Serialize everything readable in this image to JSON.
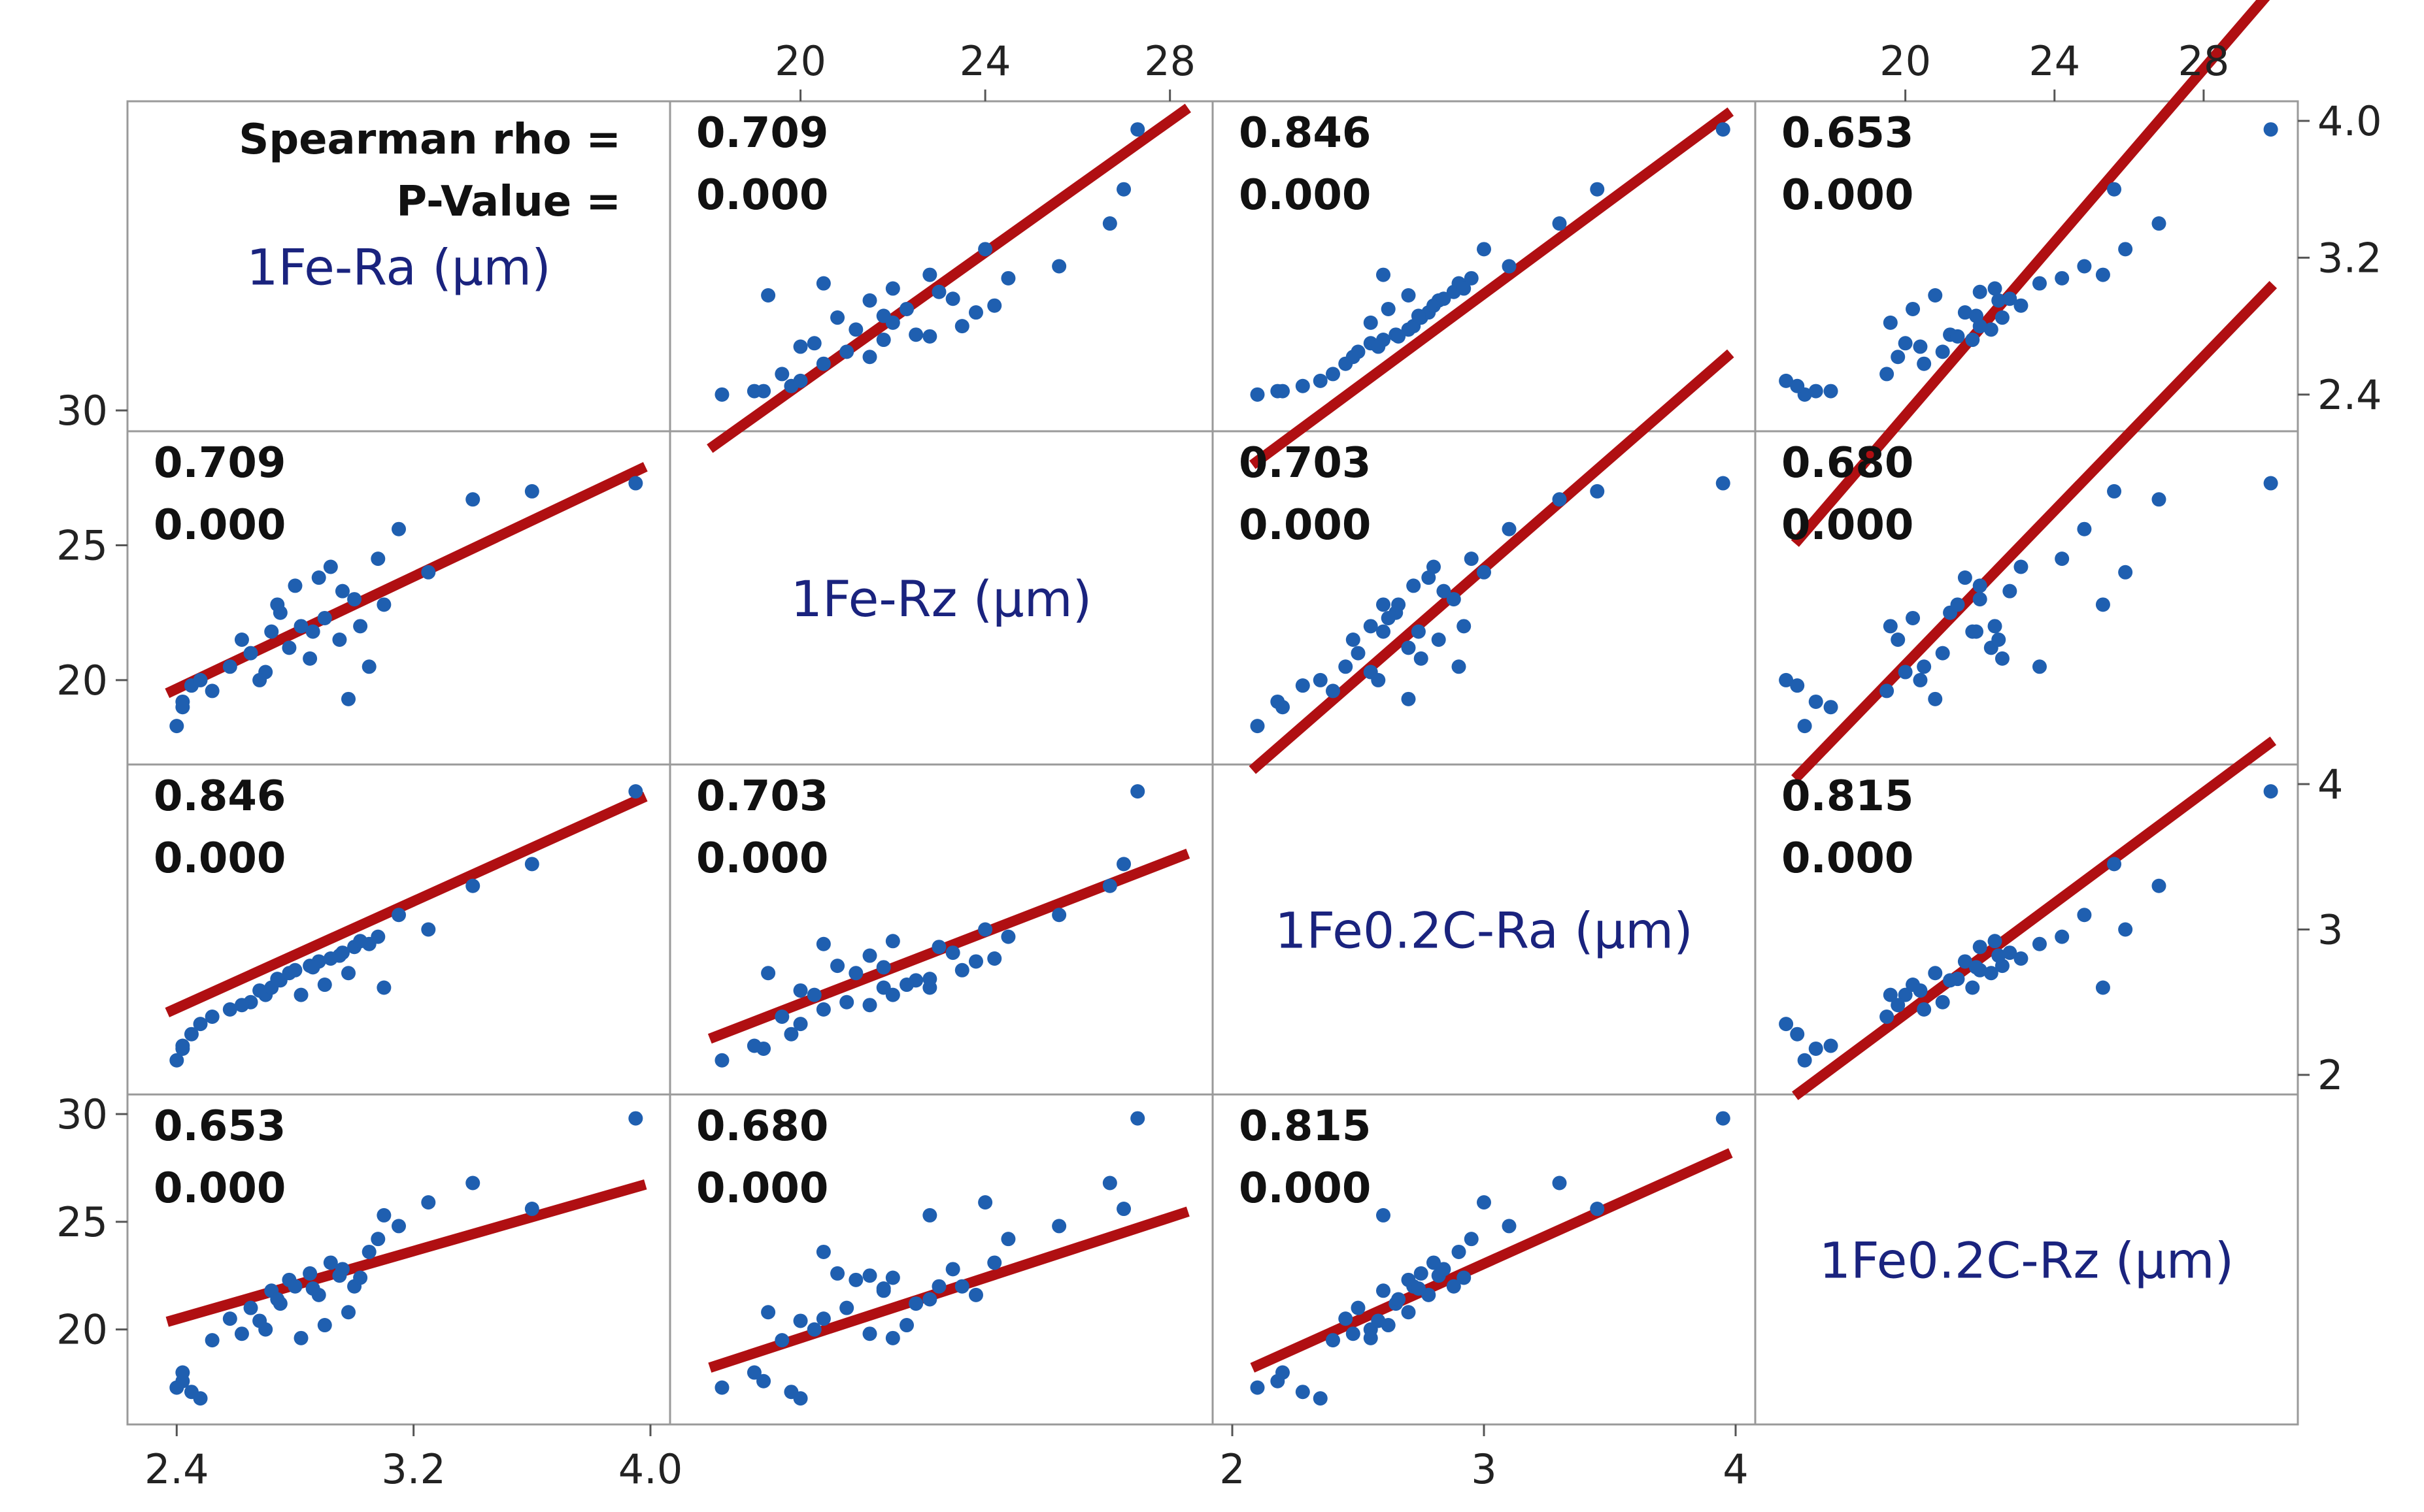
{
  "chart_data": {
    "type": "scatter-matrix",
    "statistic_label": "Spearman rho =",
    "pvalue_label": "P-Value =",
    "variables": [
      {
        "name": "1Fe-Ra (µm)",
        "range": [
          2.3,
          4.0
        ]
      },
      {
        "name": "1Fe-Rz (µm)",
        "range": [
          17.6,
          28.5
        ]
      },
      {
        "name": "1Fe0.2C-Ra (µm)",
        "range": [
          2.0,
          4.0
        ]
      },
      {
        "name": "1Fe0.2C-Rz (µm)",
        "range": [
          16.5,
          30.0
        ]
      }
    ],
    "axes": {
      "top": {
        "ticks": [
          "20",
          "24",
          "28"
        ]
      },
      "bottom_col0": {
        "ticks": [
          "2.4",
          "3.2",
          "4.0"
        ]
      },
      "bottom_col2": {
        "ticks": [
          "2",
          "3",
          "4"
        ]
      },
      "left_row1": {
        "ticks": [
          "30",
          "25",
          "20"
        ]
      },
      "left_row3": {
        "ticks": [
          "30",
          "25",
          "20"
        ]
      },
      "right_row0": {
        "ticks": [
          "4.0",
          "3.2",
          "2.4"
        ]
      },
      "right_row2": {
        "ticks": [
          "4",
          "3",
          "2"
        ]
      }
    },
    "stats": [
      {
        "pair": [
          "1Fe-Ra (µm)",
          "1Fe-Rz (µm)"
        ],
        "rho": "0.709",
        "p": "0.000"
      },
      {
        "pair": [
          "1Fe-Ra (µm)",
          "1Fe0.2C-Ra (µm)"
        ],
        "rho": "0.846",
        "p": "0.000"
      },
      {
        "pair": [
          "1Fe-Ra (µm)",
          "1Fe0.2C-Rz (µm)"
        ],
        "rho": "0.653",
        "p": "0.000"
      },
      {
        "pair": [
          "1Fe-Rz (µm)",
          "1Fe0.2C-Ra (µm)"
        ],
        "rho": "0.703",
        "p": "0.000"
      },
      {
        "pair": [
          "1Fe-Rz (µm)",
          "1Fe0.2C-Rz (µm)"
        ],
        "rho": "0.680",
        "p": "0.000"
      },
      {
        "pair": [
          "1Fe0.2C-Ra (µm)",
          "1Fe0.2C-Rz (µm)"
        ],
        "rho": "0.815",
        "p": "0.000"
      }
    ],
    "fit_lines": [
      {
        "x": "1Fe-Ra (µm)",
        "y": "1Fe-Rz (µm)",
        "intercept": 7.2,
        "slope": 5.2
      },
      {
        "x": "1Fe-Ra (µm)",
        "y": "1Fe0.2C-Ra (µm)",
        "intercept": 0.25,
        "slope": 0.92
      },
      {
        "x": "1Fe-Ra (µm)",
        "y": "1Fe0.2C-Rz (µm)",
        "intercept": 11.0,
        "slope": 3.95
      },
      {
        "x": "1Fe-Rz (µm)",
        "y": "1Fe0.2C-Ra (µm)",
        "intercept": 0.03,
        "slope": 0.123
      },
      {
        "x": "1Fe-Rz (µm)",
        "y": "1Fe0.2C-Rz (µm)",
        "intercept": 5.6,
        "slope": 0.7
      },
      {
        "x": "1Fe0.2C-Ra (µm)",
        "y": "1Fe0.2C-Rz (µm)",
        "intercept": 7.3,
        "slope": 5.25
      }
    ],
    "observations": [
      {
        "Ra1": 2.4,
        "Rz1": 18.3,
        "Ra2": 2.1,
        "Rz2": 17.3
      },
      {
        "Ra1": 2.42,
        "Rz1": 19.2,
        "Ra2": 2.18,
        "Rz2": 17.6
      },
      {
        "Ra1": 2.45,
        "Rz1": 19.8,
        "Ra2": 2.28,
        "Rz2": 17.1
      },
      {
        "Ra1": 2.48,
        "Rz1": 20.0,
        "Ra2": 2.35,
        "Rz2": 16.8
      },
      {
        "Ra1": 2.52,
        "Rz1": 19.6,
        "Ra2": 2.4,
        "Rz2": 19.5
      },
      {
        "Ra1": 2.58,
        "Rz1": 20.5,
        "Ra2": 2.45,
        "Rz2": 20.5
      },
      {
        "Ra1": 2.65,
        "Rz1": 21.0,
        "Ra2": 2.5,
        "Rz2": 21.0
      },
      {
        "Ra1": 2.7,
        "Rz1": 20.3,
        "Ra2": 2.55,
        "Rz2": 20.0
      },
      {
        "Ra1": 2.72,
        "Rz1": 21.8,
        "Ra2": 2.6,
        "Rz2": 21.8
      },
      {
        "Ra1": 2.75,
        "Rz1": 22.5,
        "Ra2": 2.65,
        "Rz2": 21.2
      },
      {
        "Ra1": 2.78,
        "Rz1": 21.2,
        "Ra2": 2.7,
        "Rz2": 22.3
      },
      {
        "Ra1": 2.8,
        "Rz1": 23.5,
        "Ra2": 2.72,
        "Rz2": 22.0
      },
      {
        "Ra1": 2.82,
        "Rz1": 22.0,
        "Ra2": 2.55,
        "Rz2": 19.6
      },
      {
        "Ra1": 2.85,
        "Rz1": 20.8,
        "Ra2": 2.75,
        "Rz2": 22.6
      },
      {
        "Ra1": 2.88,
        "Rz1": 23.8,
        "Ra2": 2.78,
        "Rz2": 21.6
      },
      {
        "Ra1": 2.9,
        "Rz1": 22.3,
        "Ra2": 2.62,
        "Rz2": 20.2
      },
      {
        "Ra1": 2.92,
        "Rz1": 24.2,
        "Ra2": 2.8,
        "Rz2": 23.1
      },
      {
        "Ra1": 2.95,
        "Rz1": 21.5,
        "Ra2": 2.82,
        "Rz2": 22.5
      },
      {
        "Ra1": 2.98,
        "Rz1": 19.3,
        "Ra2": 2.7,
        "Rz2": 20.8
      },
      {
        "Ra1": 3.0,
        "Rz1": 23.0,
        "Ra2": 2.88,
        "Rz2": 22.0
      },
      {
        "Ra1": 3.05,
        "Rz1": 20.5,
        "Ra2": 2.9,
        "Rz2": 23.6
      },
      {
        "Ra1": 3.08,
        "Rz1": 24.5,
        "Ra2": 2.95,
        "Rz2": 24.2
      },
      {
        "Ra1": 3.1,
        "Rz1": 22.8,
        "Ra2": 2.6,
        "Rz2": 25.3
      },
      {
        "Ra1": 3.15,
        "Rz1": 25.6,
        "Ra2": 3.1,
        "Rz2": 24.8
      },
      {
        "Ra1": 3.25,
        "Rz1": 24.0,
        "Ra2": 3.0,
        "Rz2": 25.9
      },
      {
        "Ra1": 3.4,
        "Rz1": 26.7,
        "Ra2": 3.3,
        "Rz2": 26.8
      },
      {
        "Ra1": 3.6,
        "Rz1": 27.0,
        "Ra2": 3.45,
        "Rz2": 25.6
      },
      {
        "Ra1": 3.95,
        "Rz1": 27.3,
        "Ra2": 3.95,
        "Rz2": 29.8
      },
      {
        "Ra1": 2.42,
        "Rz1": 19.0,
        "Ra2": 2.2,
        "Rz2": 18.0
      },
      {
        "Ra1": 2.62,
        "Rz1": 21.5,
        "Ra2": 2.48,
        "Rz2": 19.8
      },
      {
        "Ra1": 2.68,
        "Rz1": 20.0,
        "Ra2": 2.58,
        "Rz2": 20.4
      },
      {
        "Ra1": 2.74,
        "Rz1": 22.8,
        "Ra2": 2.66,
        "Rz2": 21.4
      },
      {
        "Ra1": 2.86,
        "Rz1": 21.8,
        "Ra2": 2.74,
        "Rz2": 21.9
      },
      {
        "Ra1": 2.96,
        "Rz1": 23.3,
        "Ra2": 2.84,
        "Rz2": 22.8
      },
      {
        "Ra1": 3.02,
        "Rz1": 22.0,
        "Ra2": 2.92,
        "Rz2": 22.4
      }
    ]
  }
}
